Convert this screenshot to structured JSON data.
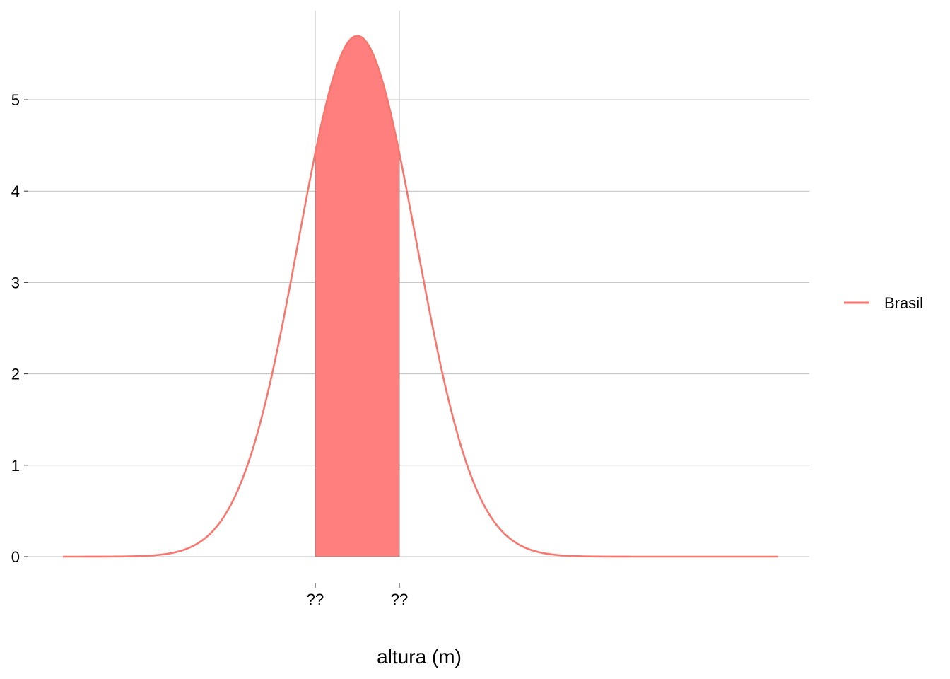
{
  "chart_data": {
    "type": "area",
    "xlabel": "altura (m)",
    "ylabel": "",
    "xlim": [
      1.2,
      2.1
    ],
    "ylim": [
      0,
      5.7
    ],
    "y_ticks": [
      0,
      1,
      2,
      3,
      4,
      5
    ],
    "x_ticks": [
      {
        "value": 1.6,
        "label": "??"
      },
      {
        "value": 1.7,
        "label": "??"
      }
    ],
    "grid": "horizontal",
    "legend_position": "right",
    "series": [
      {
        "name": "Brasil",
        "color": "#F8766D",
        "distribution": "normal",
        "mean": 1.65,
        "sd": 0.07,
        "x_start": 1.3,
        "x_end": 2.15
      }
    ],
    "shaded_region": {
      "from": 1.6,
      "to": 1.7,
      "color": "#FF7F7F"
    }
  }
}
